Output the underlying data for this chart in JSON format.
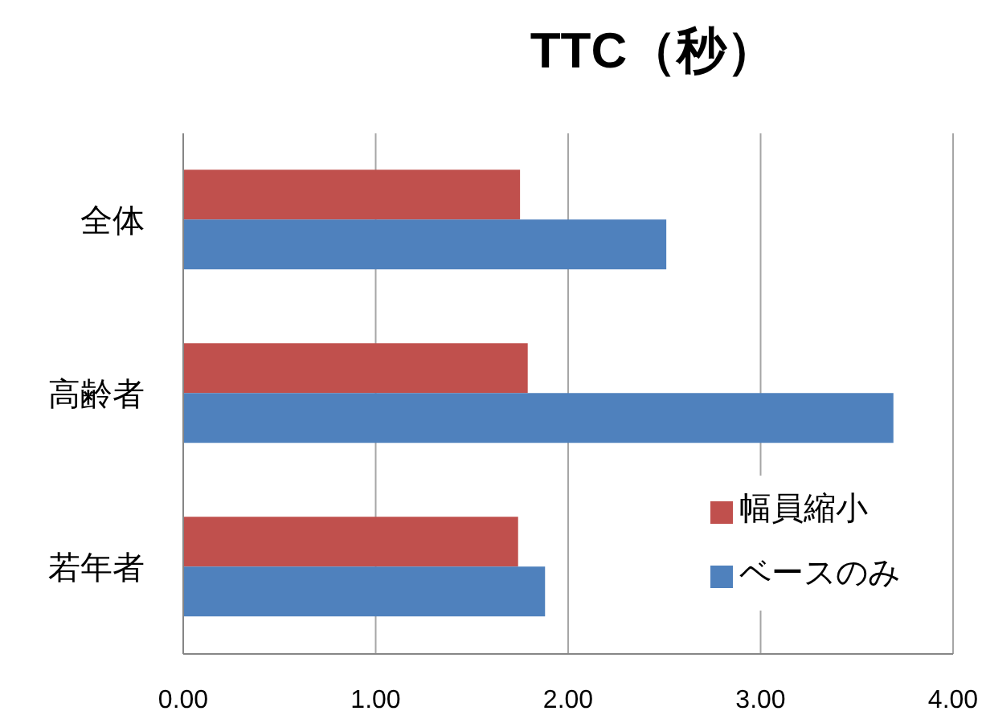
{
  "chart_data": {
    "type": "bar",
    "orientation": "horizontal",
    "title": "TTC（秒）",
    "categories": [
      "全体",
      "高齢者",
      "若年者"
    ],
    "series": [
      {
        "name": "幅員縮小",
        "color": "#c0504d",
        "values": [
          1.75,
          1.79,
          1.74
        ]
      },
      {
        "name": "ベースのみ",
        "color": "#4f81bd",
        "values": [
          2.51,
          3.69,
          1.88
        ]
      }
    ],
    "xlim": [
      0,
      4
    ],
    "xticks": [
      {
        "value": 0,
        "label": "0.00"
      },
      {
        "value": 1,
        "label": "1.00"
      },
      {
        "value": 2,
        "label": "2.00"
      },
      {
        "value": 3,
        "label": "3.00"
      },
      {
        "value": 4,
        "label": "4.00"
      }
    ],
    "grid": "x",
    "legend": "bottom right"
  }
}
